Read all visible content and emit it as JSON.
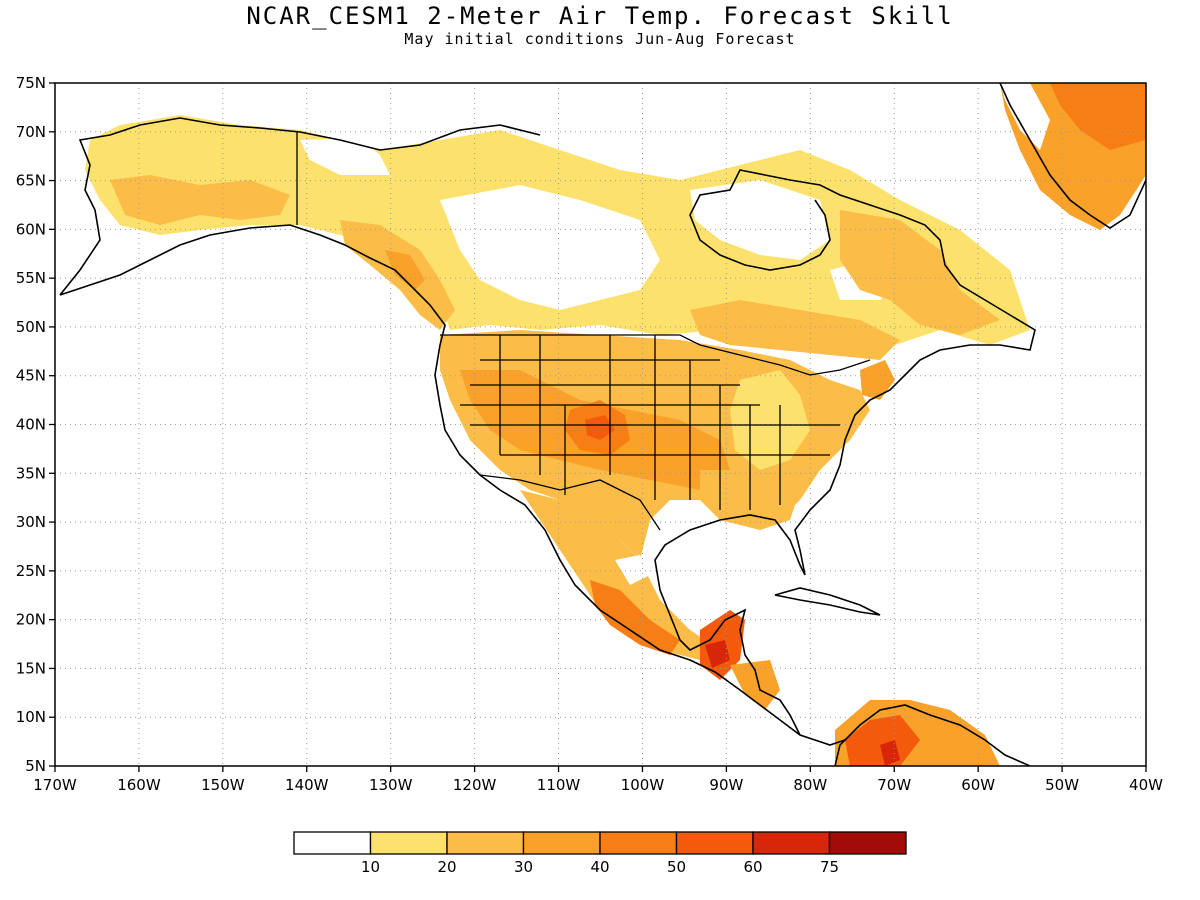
{
  "header": {
    "title": "NCAR_CESM1 2-Meter Air Temp. Forecast Skill",
    "subtitle": "May initial conditions  Jun-Aug Forecast"
  },
  "map": {
    "lon_range": [
      -170,
      -40
    ],
    "lat_range": [
      5,
      75
    ],
    "lat_ticks": [
      "75N",
      "70N",
      "65N",
      "60N",
      "55N",
      "50N",
      "45N",
      "40N",
      "35N",
      "30N",
      "25N",
      "20N",
      "15N",
      "10N",
      "5N"
    ],
    "lon_ticks": [
      "170W",
      "160W",
      "150W",
      "140W",
      "130W",
      "120W",
      "110W",
      "100W",
      "90W",
      "80W",
      "70W",
      "60W",
      "50W",
      "40W"
    ],
    "gridlines": true
  },
  "colorbar": {
    "labels": [
      "10",
      "20",
      "30",
      "40",
      "50",
      "60",
      "75"
    ],
    "colors": [
      "#ffffff",
      "#fde16d",
      "#fbbd47",
      "#f9a128",
      "#f77e14",
      "#f45a0b",
      "#d8260b",
      "#a30b08"
    ]
  }
}
